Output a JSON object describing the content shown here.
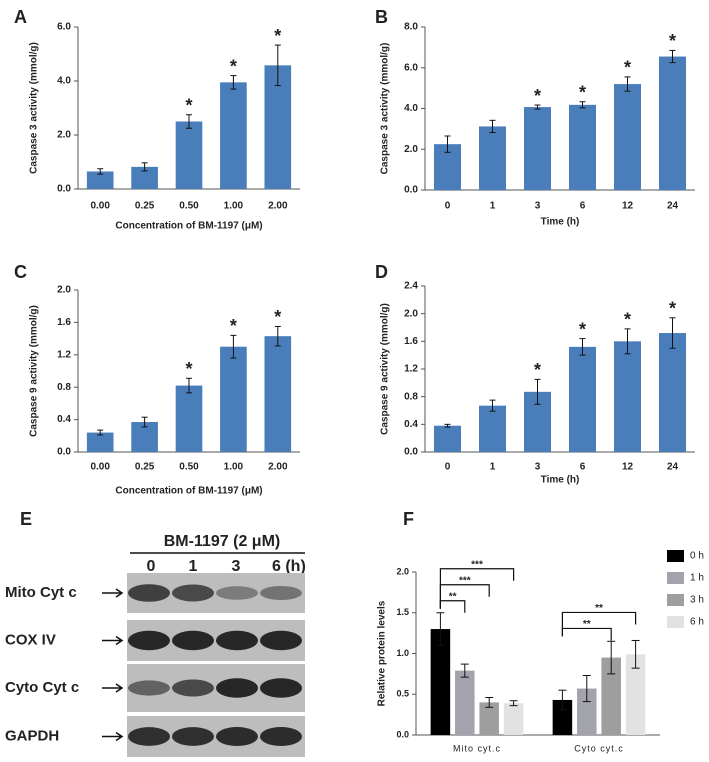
{
  "chart_data": [
    {
      "type": "bar",
      "panel": "A",
      "ylabel": "Caspase 3 activity (mmol/g)",
      "xlabel": "Concentration of BM-1197 (μM)",
      "categories": [
        "0.00",
        "0.25",
        "0.50",
        "1.00",
        "2.00"
      ],
      "values": [
        0.65,
        0.82,
        2.5,
        3.95,
        4.58
      ],
      "errors": [
        0.1,
        0.15,
        0.25,
        0.25,
        0.75
      ],
      "significance": [
        null,
        null,
        "*",
        "*",
        "*"
      ],
      "color": "#4a7ebb",
      "ylim": [
        0,
        6
      ],
      "yticks": [
        {
          "value": 0,
          "label": "0.0"
        },
        {
          "value": 2,
          "label": "2.0"
        },
        {
          "value": 4,
          "label": "4.0"
        },
        {
          "value": 6,
          "label": "6.0"
        }
      ]
    },
    {
      "type": "bar",
      "panel": "B",
      "ylabel": "Caspase 3 activity (mmol/g)",
      "xlabel": "Time (h)",
      "categories": [
        "0",
        "1",
        "3",
        "6",
        "12",
        "24"
      ],
      "values": [
        2.25,
        3.12,
        4.07,
        4.18,
        5.2,
        6.55
      ],
      "errors": [
        0.4,
        0.3,
        0.1,
        0.15,
        0.35,
        0.3
      ],
      "significance": [
        null,
        null,
        "*",
        "*",
        "*",
        "*"
      ],
      "color": "#4a7ebb",
      "ylim": [
        0,
        8
      ],
      "yticks": [
        {
          "value": 0,
          "label": "0.0"
        },
        {
          "value": 2,
          "label": "2.0"
        },
        {
          "value": 4,
          "label": "4.0"
        },
        {
          "value": 6,
          "label": "6.0"
        },
        {
          "value": 8,
          "label": "8.0"
        }
      ]
    },
    {
      "type": "bar",
      "panel": "C",
      "ylabel": "Caspase 9 activity (mmol/g)",
      "xlabel": "Concentration of BM-1197 (μM)",
      "categories": [
        "0.00",
        "0.25",
        "0.50",
        "1.00",
        "2.00"
      ],
      "values": [
        0.24,
        0.37,
        0.82,
        1.3,
        1.43
      ],
      "errors": [
        0.03,
        0.06,
        0.09,
        0.14,
        0.12
      ],
      "significance": [
        null,
        null,
        "*",
        "*",
        "*"
      ],
      "color": "#4a7ebb",
      "ylim": [
        0,
        2
      ],
      "yticks": [
        {
          "value": 0,
          "label": "0.0"
        },
        0.4,
        0.8,
        1.2,
        1.6,
        {
          "value": 2,
          "label": "2.0"
        }
      ]
    },
    {
      "type": "bar",
      "panel": "D",
      "ylabel": "Caspase 9 activity (mmol/g)",
      "xlabel": "Time (h)",
      "categories": [
        "0",
        "1",
        "3",
        "6",
        "12",
        "24"
      ],
      "values": [
        0.38,
        0.67,
        0.87,
        1.52,
        1.6,
        1.72
      ],
      "errors": [
        0.02,
        0.08,
        0.18,
        0.12,
        0.18,
        0.22
      ],
      "significance": [
        null,
        null,
        "*",
        "*",
        "*",
        "*"
      ],
      "color": "#4a7ebb",
      "ylim": [
        0,
        2.4
      ],
      "yticks": [
        {
          "value": 0,
          "label": "0.0"
        },
        0.4,
        0.8,
        1.2,
        1.6,
        {
          "value": 2,
          "label": "2.0"
        },
        2.4
      ]
    },
    {
      "type": "grouped_bar",
      "panel": "F",
      "ylabel": "Relative protein levels",
      "categories": [
        "Mito cyt.c",
        "Cyto cyt.c"
      ],
      "series": [
        {
          "name": "0 h",
          "color": "#000000",
          "values": [
            1.3,
            0.43
          ],
          "errors": [
            0.2,
            0.12
          ]
        },
        {
          "name": "1 h",
          "color": "#a3a3ad",
          "values": [
            0.79,
            0.57
          ],
          "errors": [
            0.08,
            0.16
          ]
        },
        {
          "name": "3 h",
          "color": "#9e9e9e",
          "values": [
            0.4,
            0.95
          ],
          "errors": [
            0.06,
            0.2
          ]
        },
        {
          "name": "6 h",
          "color": "#e2e2e2",
          "values": [
            0.39,
            0.99
          ],
          "errors": [
            0.03,
            0.17
          ]
        }
      ],
      "brackets": [
        {
          "group": 0,
          "from": 0,
          "to": 1,
          "label": "**"
        },
        {
          "group": 0,
          "from": 0,
          "to": 2,
          "label": "***"
        },
        {
          "group": 0,
          "from": 0,
          "to": 3,
          "label": "***"
        },
        {
          "group": 1,
          "from": 0,
          "to": 2,
          "label": "**"
        },
        {
          "group": 1,
          "from": 0,
          "to": 3,
          "label": "**"
        }
      ],
      "ylim": [
        0,
        2
      ],
      "yticks": [
        {
          "value": 0,
          "label": "0.0"
        },
        0.5,
        {
          "value": 1,
          "label": "1.0"
        },
        1.5,
        {
          "value": 2,
          "label": "2.0"
        }
      ],
      "legend": "right"
    }
  ],
  "western_blot": {
    "panel": "E",
    "treatment": "BM-1197 (2 μM)",
    "lanes": [
      "0",
      "1",
      "3",
      "6 (h)"
    ],
    "rows": [
      "Mito Cyt c",
      "COX IV",
      "Cyto Cyt c",
      "GAPDH"
    ]
  }
}
